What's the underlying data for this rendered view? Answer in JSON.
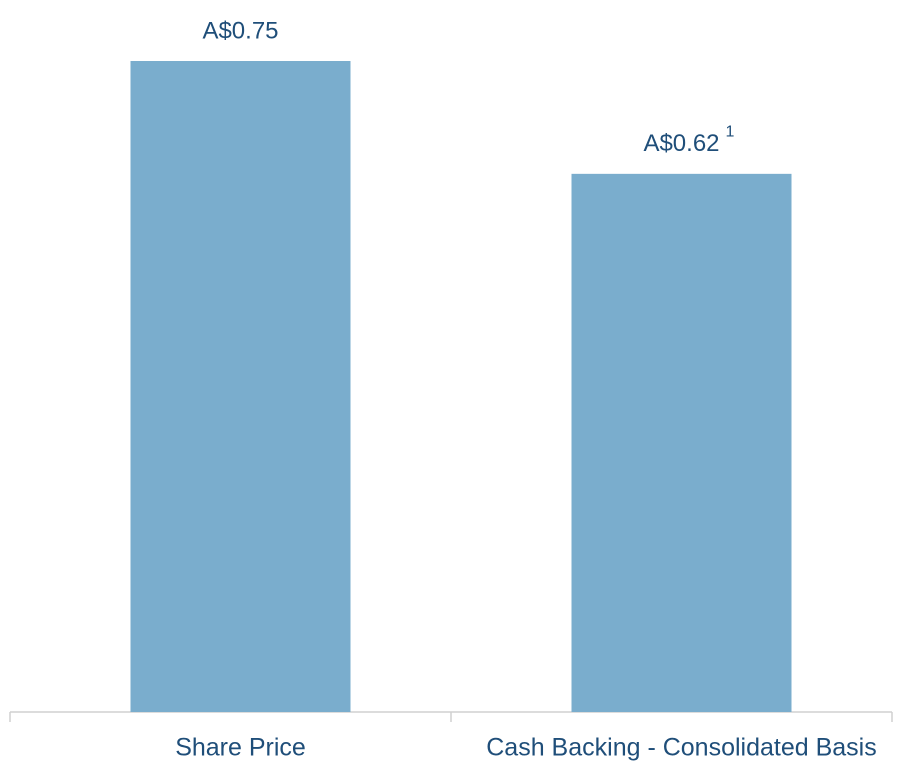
{
  "chart_data": {
    "type": "bar",
    "categories": [
      "Share Price",
      "Cash Backing - Consolidated Basis"
    ],
    "values": [
      0.75,
      0.62
    ],
    "value_labels": [
      "A$0.75",
      "A$0.62"
    ],
    "color": "#7aadcd",
    "annotation": "1"
  }
}
